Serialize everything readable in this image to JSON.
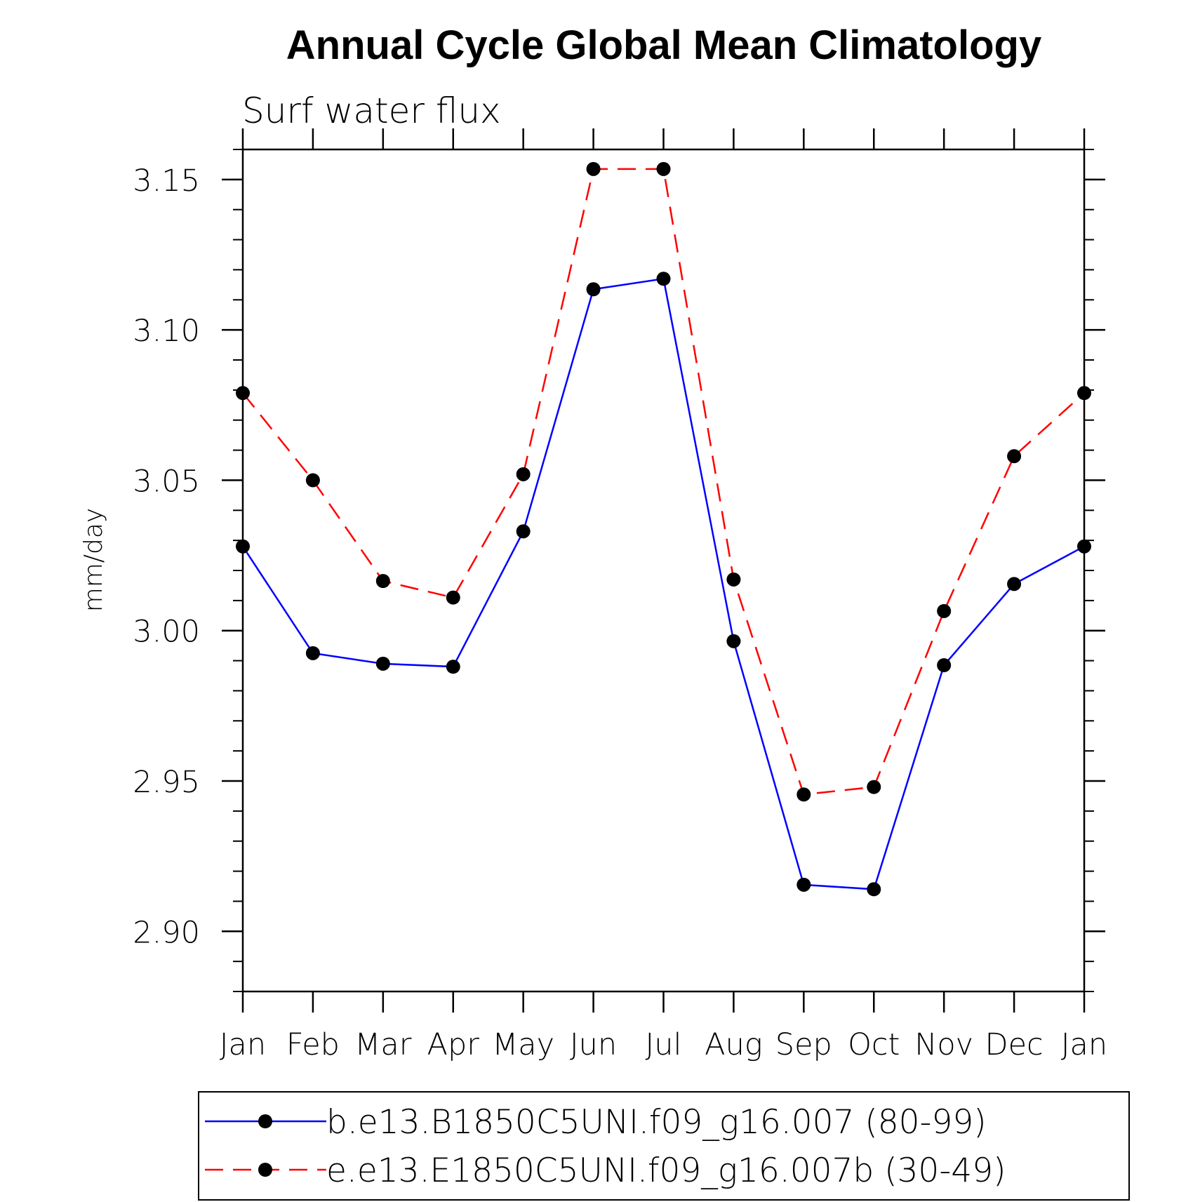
{
  "chart_data": {
    "type": "line",
    "title": "Annual Cycle Global Mean Climatology",
    "subtitle": "Surf water flux",
    "xlabel": "",
    "ylabel": "mm/day",
    "categories": [
      "Jan",
      "Feb",
      "Mar",
      "Apr",
      "May",
      "Jun",
      "Jul",
      "Aug",
      "Sep",
      "Oct",
      "Nov",
      "Dec",
      "Jan"
    ],
    "ylim": [
      2.88,
      3.16
    ],
    "yticks": [
      2.9,
      2.95,
      3.0,
      3.05,
      3.1,
      3.15
    ],
    "ytick_labels": [
      "2.90",
      "2.95",
      "3.00",
      "3.05",
      "3.10",
      "3.15"
    ],
    "y_minor_step": 0.01,
    "grid": false,
    "legend_position": "bottom",
    "series": [
      {
        "name": "b.e13.B1850C5UNI.f09_g16.007 (80-99)",
        "color": "#0000ff",
        "line_style": "solid",
        "marker": "filled-circle",
        "values": [
          3.028,
          2.9925,
          2.989,
          2.988,
          3.033,
          3.1135,
          3.117,
          2.9965,
          2.9155,
          2.914,
          2.9885,
          3.0155,
          3.028
        ]
      },
      {
        "name": "e.e13.E1850C5UNI.f09_g16.007b (30-49)",
        "color": "#ff0000",
        "line_style": "dashed",
        "marker": "filled-circle",
        "values": [
          3.079,
          3.05,
          3.0165,
          3.011,
          3.052,
          3.1535,
          3.1535,
          3.017,
          2.9455,
          2.948,
          3.0065,
          3.058,
          3.079
        ]
      }
    ]
  }
}
